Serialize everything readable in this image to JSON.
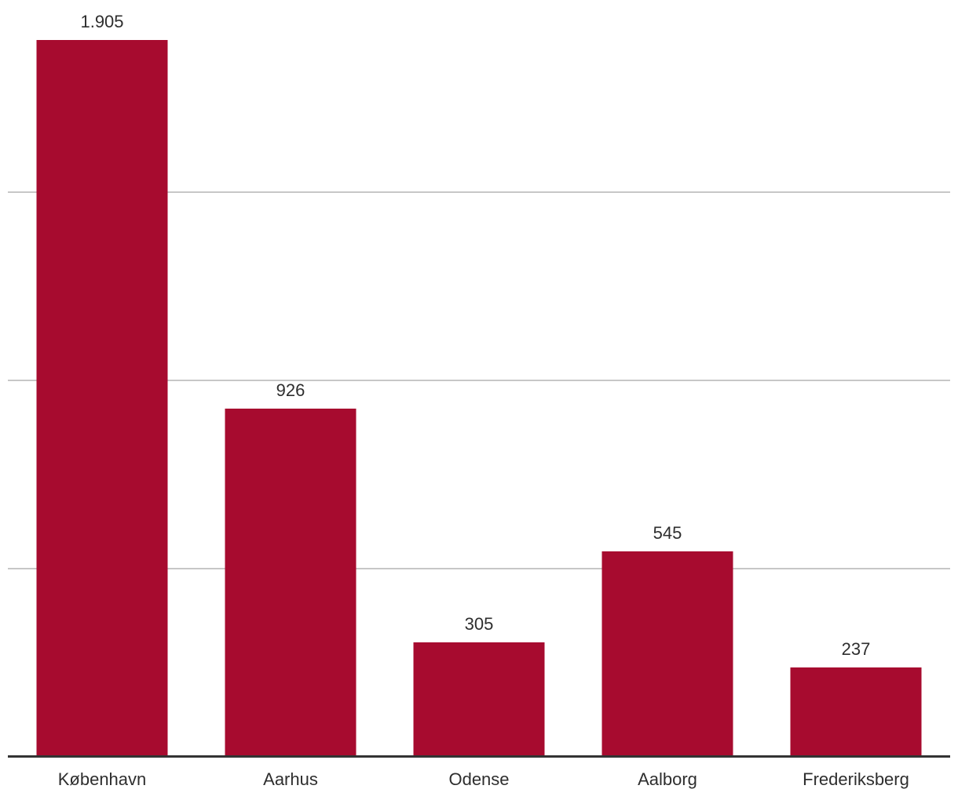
{
  "chart_data": {
    "type": "bar",
    "categories": [
      "København",
      "Aarhus",
      "Odense",
      "Aalborg",
      "Frederiksberg"
    ],
    "values": [
      1905,
      926,
      305,
      545,
      237
    ],
    "value_labels": [
      "1.905",
      "926",
      "305",
      "545",
      "237"
    ],
    "title": "",
    "xlabel": "",
    "ylabel": "",
    "ylim": [
      0,
      2000
    ],
    "gridline_values": [
      500,
      1000,
      1500
    ],
    "grid": true,
    "legend": false,
    "y_axis_tick_labels_visible": false,
    "colors": {
      "bar": "#a70b2f",
      "gridline": "#c7c7c7",
      "axis": "#333333",
      "label": "#2e2e2e",
      "background": "#ffffff"
    }
  }
}
